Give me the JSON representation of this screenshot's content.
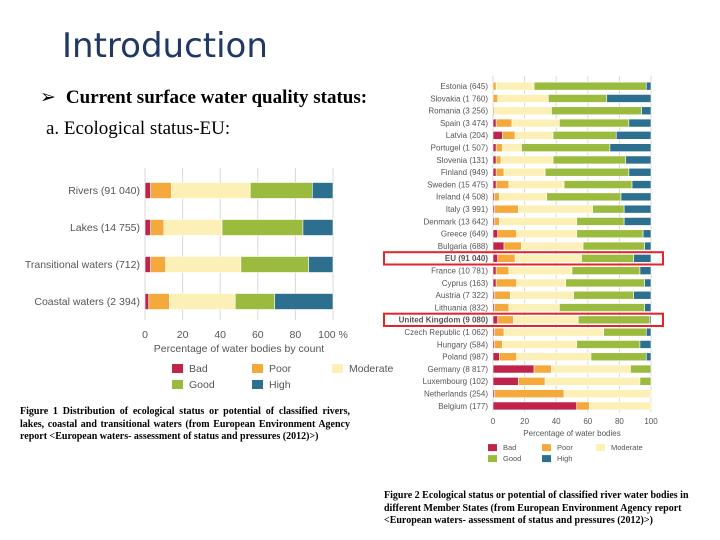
{
  "slide": {
    "title": "Introduction",
    "bullet": "Current surface water quality status:",
    "subheading": "a. Ecological status-EU:",
    "caption1": "Figure 1 Distribution of ecological status or potential of classified rivers, lakes, coastal and transitional waters (from European Environment Agency report <European waters- assessment of status and pressures (2012)>)",
    "caption2": "Figure 2 Ecological status or potential of classified river water bodies in different Member States (from European Environment Agency report <European waters- assessment of status and pressures (2012)>)"
  },
  "colors": {
    "Bad": "#c0244a",
    "Poor": "#f4a93a",
    "Moderate": "#fdf0b6",
    "Good": "#9bbb3f",
    "High": "#2d6f8e",
    "highlight": "#e3242b"
  },
  "chart_data": [
    {
      "type": "bar",
      "orientation": "horizontal",
      "stacked": true,
      "categories": [
        "Rivers (91 040)",
        "Lakes (14 755)",
        "Transitional waters (712)",
        "Coastal waters (2 394)"
      ],
      "series": [
        {
          "name": "Bad",
          "values": [
            3,
            3,
            3,
            2
          ]
        },
        {
          "name": "Poor",
          "values": [
            11,
            7,
            8,
            11
          ]
        },
        {
          "name": "Moderate",
          "values": [
            42,
            31,
            40,
            35
          ]
        },
        {
          "name": "Good",
          "values": [
            33,
            43,
            36,
            21
          ]
        },
        {
          "name": "High",
          "values": [
            11,
            16,
            13,
            31
          ]
        }
      ],
      "xlabel": "Percentage of water bodies by count",
      "xticks": [
        "0",
        "20",
        "40",
        "60",
        "80",
        "100 %"
      ],
      "xlim": [
        0,
        100
      ],
      "legend": "bottom",
      "grid": true
    },
    {
      "type": "bar",
      "orientation": "horizontal",
      "stacked": true,
      "categories": [
        "Estonia (645)",
        "Slovakia (1 760)",
        "Romania (3 256)",
        "Spain (3 474)",
        "Latvia (204)",
        "Portugel (1 507)",
        "Slovenia (131)",
        "Finland (949)",
        "Sweden (15 475)",
        "Ireland (4 508)",
        "Italy (3 991)",
        "Denmark (13 642)",
        "Greece (649)",
        "Bulgaria (688)",
        "EU (91 040)",
        "France (10 781)",
        "Cyprus (163)",
        "Austria (7 322)",
        "Lithuania (832)",
        "United Kingdom (9 080)",
        "Czech Republic (1 062)",
        "Hungary (584)",
        "Poland (987)",
        "Germany (8 817)",
        "Luxembourg (102)",
        "Netherlands (254)",
        "Belgium (177)"
      ],
      "highlighted": [
        "EU (91 040)",
        "United Kingdom (9 080)"
      ],
      "series": [
        {
          "name": "Bad",
          "values": [
            0,
            0,
            0,
            2,
            6,
            2,
            2,
            2,
            2,
            1,
            1,
            1,
            3,
            7,
            3,
            2,
            2,
            1,
            1,
            3,
            1,
            1,
            4,
            26,
            16,
            1,
            53
          ]
        },
        {
          "name": "Poor",
          "values": [
            2,
            3,
            1,
            10,
            8,
            4,
            3,
            5,
            8,
            3,
            15,
            3,
            12,
            11,
            11,
            8,
            13,
            10,
            9,
            10,
            6,
            5,
            11,
            11,
            17,
            44,
            8
          ]
        },
        {
          "name": "Moderate",
          "values": [
            24,
            32,
            36,
            30,
            24,
            12,
            33,
            26,
            35,
            30,
            47,
            49,
            38,
            39,
            42,
            40,
            31,
            40,
            32,
            41,
            63,
            47,
            47,
            50,
            60,
            55,
            39
          ]
        },
        {
          "name": "Good",
          "values": [
            71,
            37,
            57,
            44,
            40,
            56,
            46,
            53,
            43,
            47,
            20,
            30,
            42,
            39,
            33,
            43,
            50,
            38,
            54,
            45,
            27,
            40,
            35,
            13,
            7,
            0,
            0
          ]
        },
        {
          "name": "High",
          "values": [
            3,
            28,
            6,
            14,
            22,
            26,
            16,
            14,
            12,
            19,
            17,
            17,
            5,
            4,
            11,
            7,
            4,
            11,
            4,
            1,
            3,
            7,
            3,
            0,
            0,
            0,
            0
          ]
        }
      ],
      "xlabel": "Percentage of water bodies",
      "xticks": [
        "0",
        "20",
        "40",
        "60",
        "80",
        "100"
      ],
      "xlim": [
        0,
        100
      ],
      "legend": "bottom",
      "grid": true
    }
  ]
}
